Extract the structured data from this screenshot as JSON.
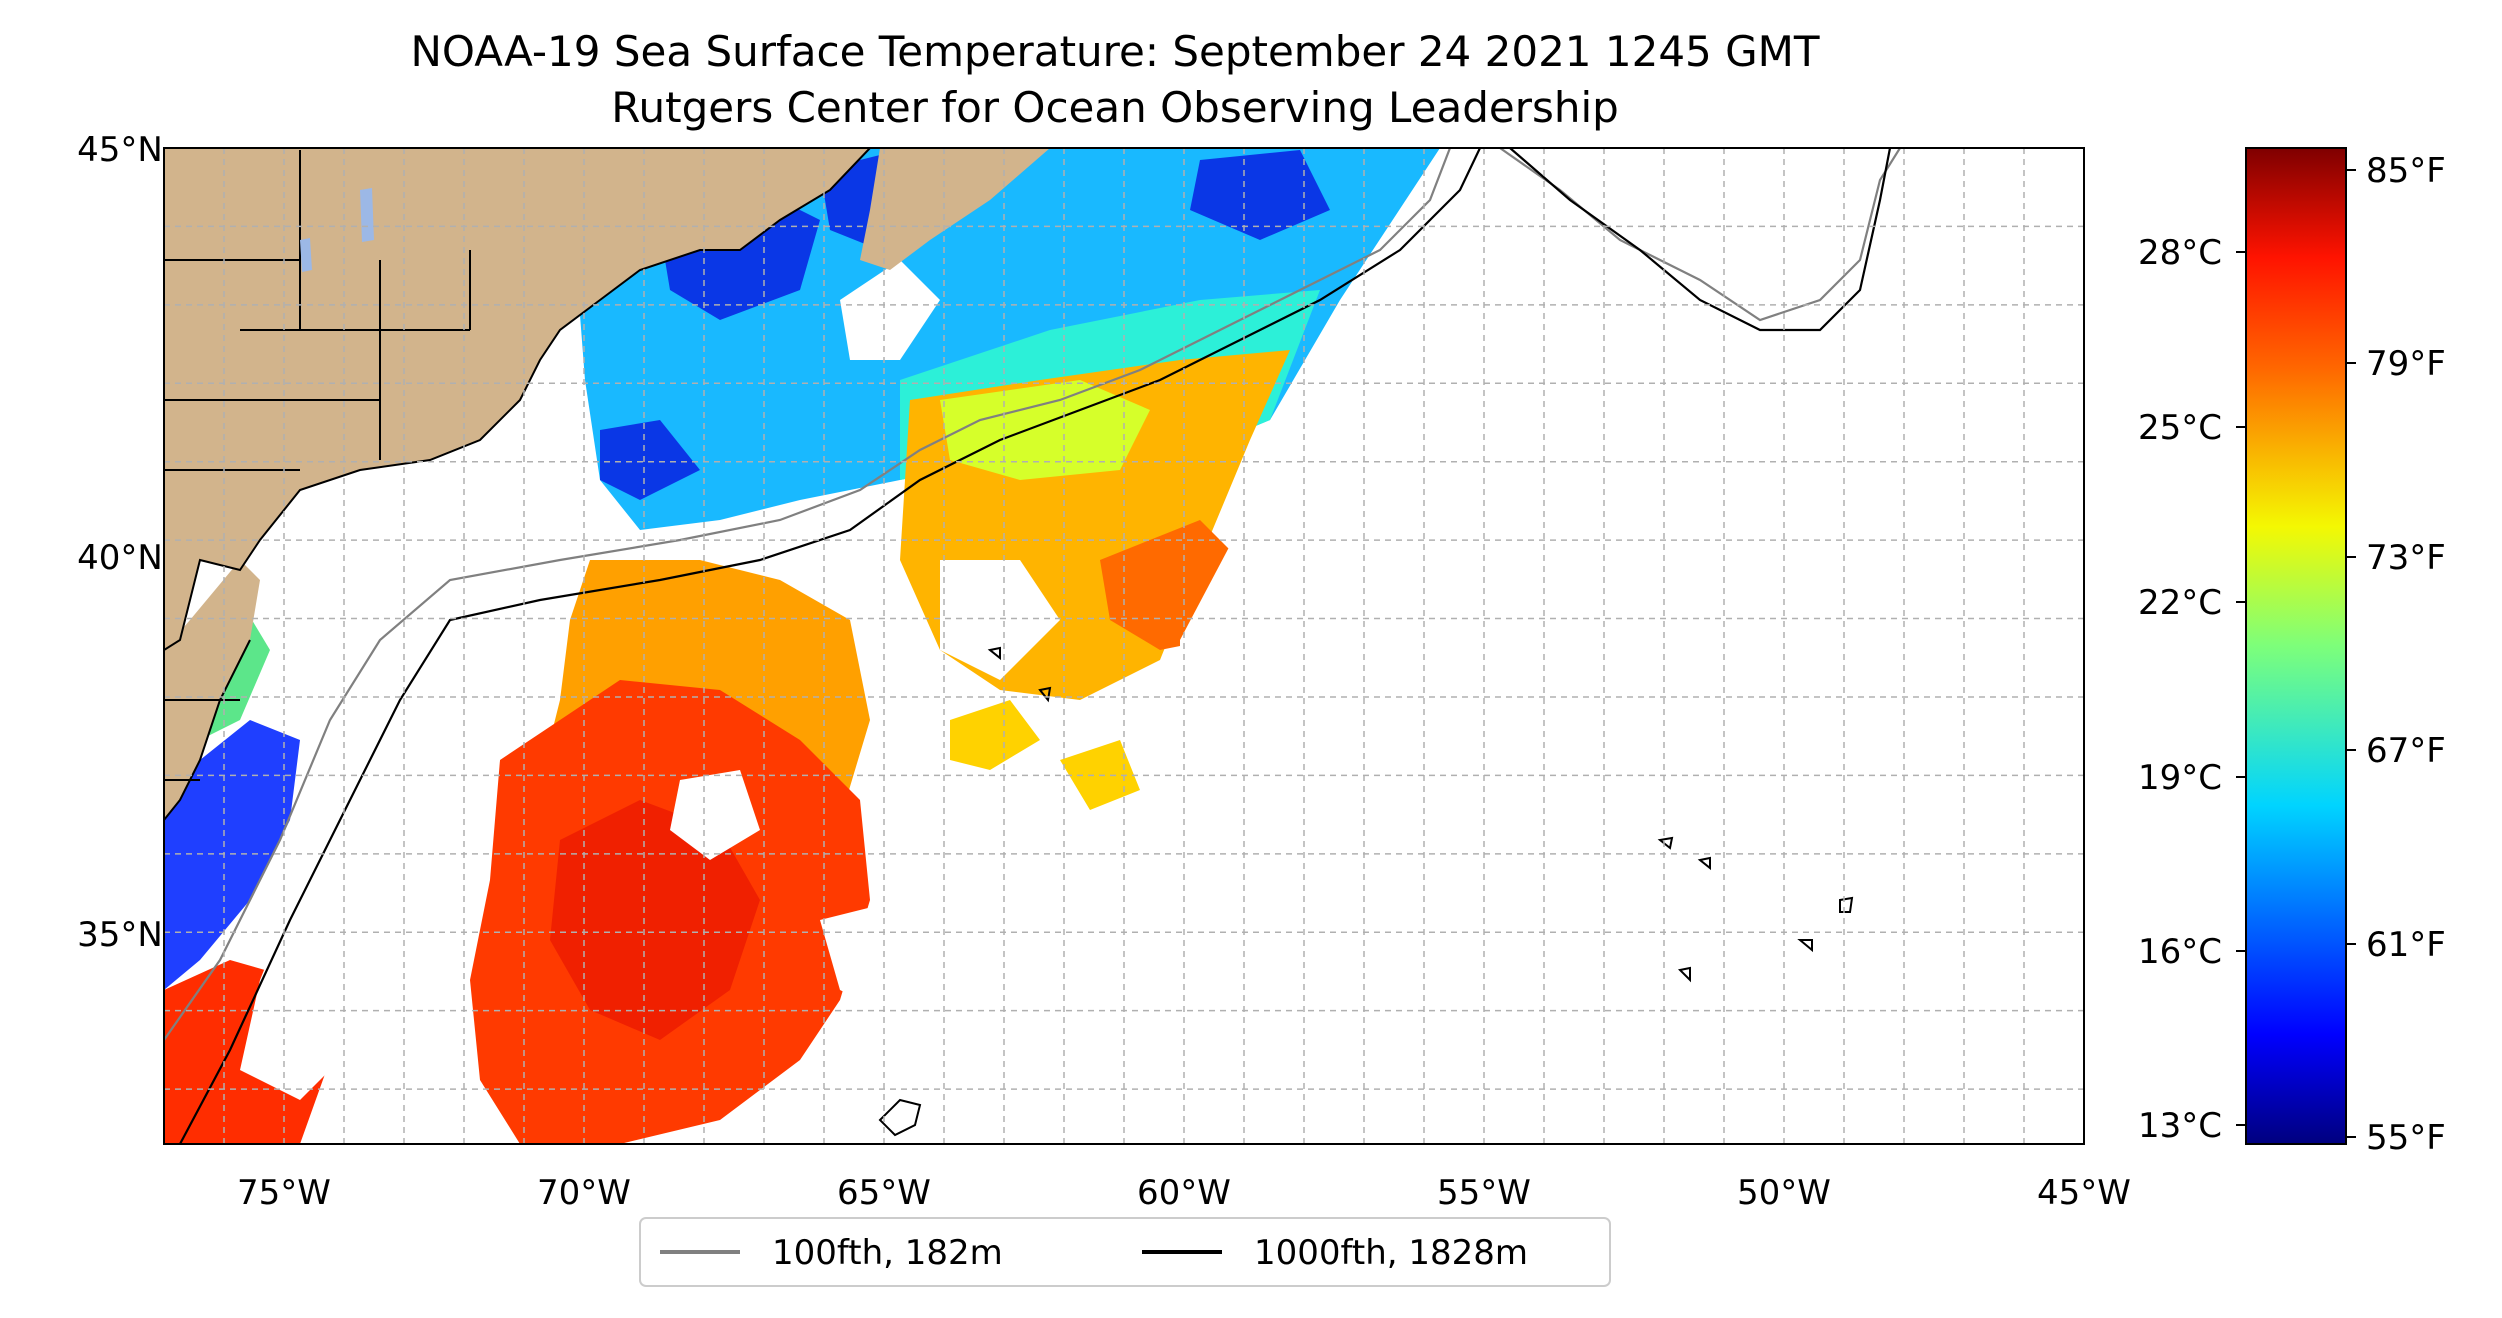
{
  "title": {
    "line1": "NOAA-19 Sea Surface Temperature: September 24 2021 1245 GMT",
    "line2": "Rutgers Center for Ocean Observing Leadership"
  },
  "map": {
    "lon_range": [
      -77,
      -45
    ],
    "lat_range": [
      32.3,
      45
    ],
    "lon_ticks": [
      "75°W",
      "70°W",
      "65°W",
      "60°W",
      "55°W",
      "50°W",
      "45°W"
    ],
    "lat_ticks": [
      "45°N",
      "40°N",
      "35°N"
    ],
    "land_color": "#d2b48c",
    "gridlines": true
  },
  "legend": {
    "placement": "bottom-center",
    "items": [
      {
        "label": "100fth, 182m",
        "color": "#808080"
      },
      {
        "label": "1000fth, 1828m",
        "color": "#000000"
      }
    ]
  },
  "colorbar": {
    "colormap": "jet",
    "celsius_labels": [
      "28°C",
      "25°C",
      "22°C",
      "19°C",
      "16°C",
      "13°C"
    ],
    "fahrenheit_labels": [
      "85°F",
      "79°F",
      "73°F",
      "67°F",
      "61°F",
      "55°F"
    ]
  }
}
